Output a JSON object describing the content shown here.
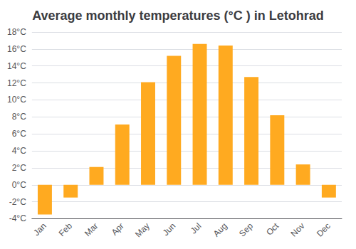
{
  "chart_data": {
    "type": "bar",
    "title": "Average monthly temperatures (°C ) in Letohrad",
    "categories": [
      "Jan",
      "Feb",
      "Mar",
      "Apr",
      "May",
      "Jun",
      "Jul",
      "Aug",
      "Sep",
      "Oct",
      "Nov",
      "Dec"
    ],
    "values": [
      -3.5,
      -1.5,
      2.1,
      7.1,
      12.1,
      15.2,
      16.6,
      16.4,
      12.7,
      8.2,
      2.4,
      -1.5
    ],
    "color": "#FFAA20",
    "ylim": [
      -4,
      18
    ],
    "yticks": [
      {
        "value": -4,
        "label": "-4°C"
      },
      {
        "value": -2,
        "label": "-2°C"
      },
      {
        "value": 0,
        "label": "0°C"
      },
      {
        "value": 2,
        "label": "2°C"
      },
      {
        "value": 4,
        "label": "4°C"
      },
      {
        "value": 6,
        "label": "6°C"
      },
      {
        "value": 8,
        "label": "8°C"
      },
      {
        "value": 10,
        "label": "10°C"
      },
      {
        "value": 12,
        "label": "12°C"
      },
      {
        "value": 14,
        "label": "14°C"
      },
      {
        "value": 16,
        "label": "16°C"
      },
      {
        "value": 18,
        "label": "18°C"
      }
    ],
    "grid": true
  }
}
